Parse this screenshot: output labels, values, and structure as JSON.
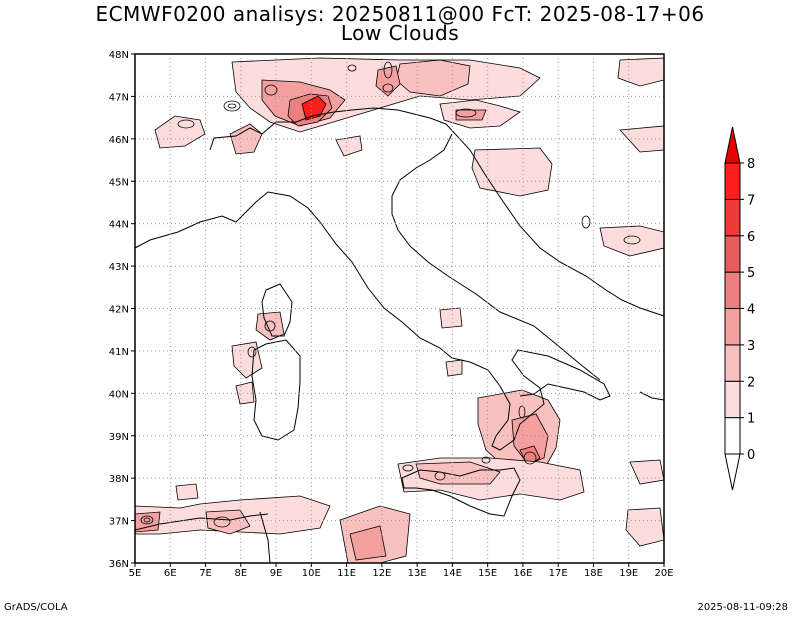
{
  "title_line1": "ECMWF0200 analisys: 20250811@00 FcT: 2025-08-17+06",
  "title_line2": "Low Clouds",
  "footer_left": "GrADS/COLA",
  "footer_right": "2025-08-11-09:28",
  "axes": {
    "lon_labels": [
      "5E",
      "6E",
      "7E",
      "8E",
      "9E",
      "10E",
      "11E",
      "12E",
      "13E",
      "14E",
      "15E",
      "16E",
      "17E",
      "18E",
      "19E",
      "20E"
    ],
    "lat_labels": [
      "48N",
      "47N",
      "46N",
      "45N",
      "44N",
      "43N",
      "42N",
      "41N",
      "40N",
      "39N",
      "38N",
      "37N",
      "36N"
    ],
    "lon_range": [
      5,
      20
    ],
    "lat_range": [
      36,
      48
    ],
    "grid": "dotted"
  },
  "colorbar": {
    "labels": [
      "0",
      "1",
      "2",
      "3",
      "4",
      "5",
      "6",
      "7",
      "8"
    ],
    "colors": [
      "#ffffff",
      "#fcdcdc",
      "#f9c0c0",
      "#f4a0a0",
      "#ee7f7f",
      "#e85c5c",
      "#f03a3a",
      "#ff1e1e",
      "#e80000"
    ]
  },
  "colors": {
    "coast": "#000000",
    "contour": "#000000"
  }
}
